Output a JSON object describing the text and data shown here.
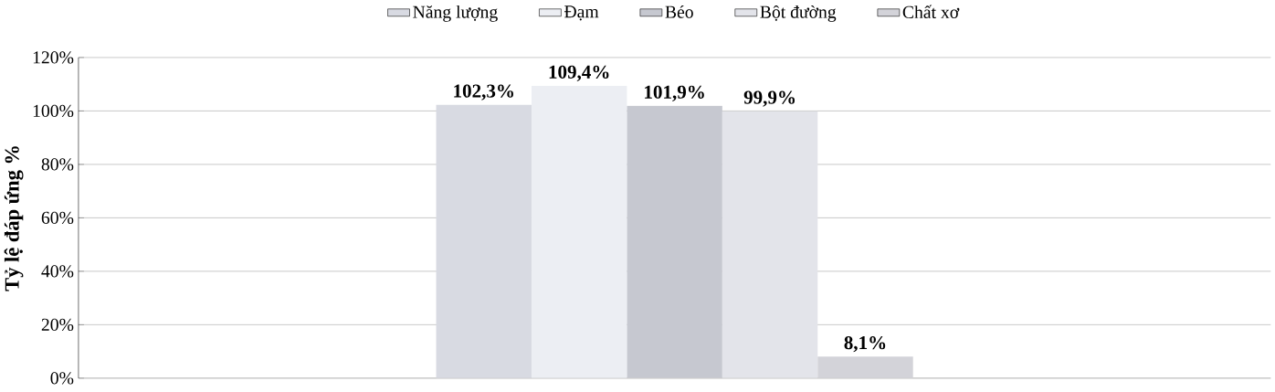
{
  "chart_data": {
    "type": "bar",
    "ylabel": "**Tỷ lệ đáp ứng %**",
    "categories": [
      null
    ],
    "series": [
      {
        "name": "Năng lượng",
        "color": "#d8dae2",
        "values": [
          102.3
        ],
        "value_labels": [
          "102,3%"
        ]
      },
      {
        "name": "Đạm",
        "color": "#eceef3",
        "values": [
          109.4
        ],
        "value_labels": [
          "109,4%"
        ]
      },
      {
        "name": "Béo",
        "color": "#c6c8d0",
        "values": [
          101.9
        ],
        "value_labels": [
          "101,9%"
        ]
      },
      {
        "name": "Bột đường",
        "color": "#e3e4ea",
        "values": [
          99.9
        ],
        "value_labels": [
          "99,9%"
        ]
      },
      {
        "name": "Chất xơ",
        "color": "#d3d3d9",
        "values": [
          8.1
        ],
        "value_labels": [
          "8,1%"
        ]
      }
    ],
    "ylim": [
      0,
      120
    ],
    "yticks": [
      {
        "value": 0,
        "label": "0%"
      },
      {
        "value": 20,
        "label": "20%"
      },
      {
        "value": 40,
        "label": "40%"
      },
      {
        "value": 60,
        "label": "60%"
      },
      {
        "value": 80,
        "label": "80%"
      },
      {
        "value": 100,
        "label": "100%"
      },
      {
        "value": 120,
        "label": "120%"
      }
    ],
    "grid": "y",
    "legend": "top"
  }
}
